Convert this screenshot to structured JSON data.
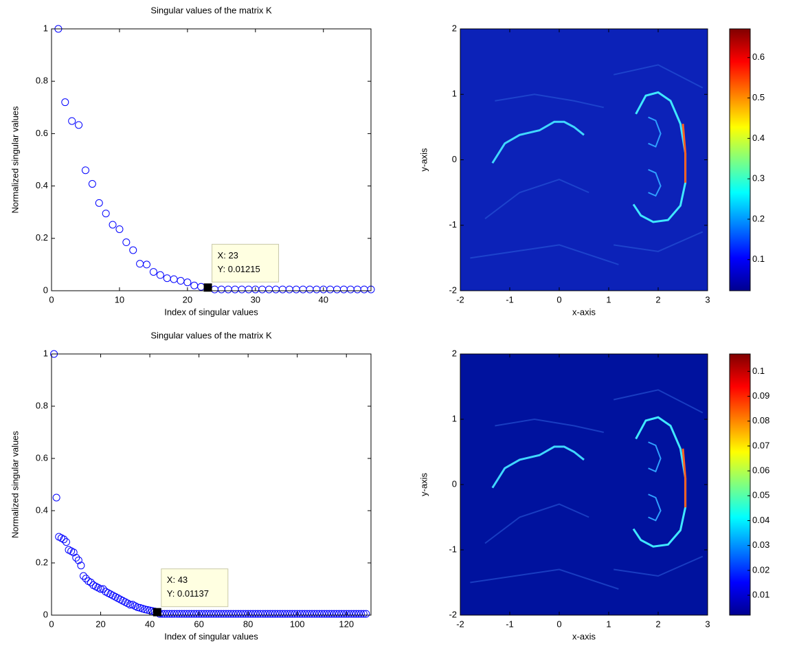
{
  "chart_data": [
    {
      "type": "scatter",
      "title": "Singular values of the matrix K",
      "xlabel": "Index of singular values",
      "ylabel": "Normalized singular values",
      "x": [
        1,
        2,
        3,
        4,
        5,
        6,
        7,
        8,
        9,
        10,
        11,
        12,
        13,
        14,
        15,
        16,
        17,
        18,
        19,
        20,
        21,
        22,
        23,
        24,
        25,
        26,
        27,
        28,
        29,
        30,
        31,
        32,
        33,
        34,
        35,
        36,
        37,
        38,
        39,
        40,
        41,
        42,
        43,
        44,
        45,
        46,
        47
      ],
      "values": [
        1,
        0.72,
        0.648,
        0.633,
        0.46,
        0.408,
        0.335,
        0.295,
        0.252,
        0.235,
        0.185,
        0.155,
        0.103,
        0.1,
        0.072,
        0.06,
        0.048,
        0.044,
        0.038,
        0.032,
        0.02,
        0.015,
        0.01215,
        0.005,
        0.005,
        0.005,
        0.005,
        0.005,
        0.005,
        0.005,
        0.005,
        0.005,
        0.005,
        0.005,
        0.005,
        0.005,
        0.005,
        0.005,
        0.005,
        0.005,
        0.005,
        0.005,
        0.005,
        0.005,
        0.005,
        0.005,
        0.005
      ],
      "color": "#0000ff",
      "xlim": [
        0,
        47
      ],
      "ylim": [
        0,
        1
      ],
      "xticks": [
        0,
        10,
        20,
        30,
        40
      ],
      "yticks": [
        0,
        0.2,
        0.4,
        0.6,
        0.8,
        1
      ],
      "annotations": [
        {
          "x_label": "X: 23",
          "y_label": "Y: 0.01215",
          "x": 23,
          "y": 0.01215
        }
      ]
    },
    {
      "type": "heatmap",
      "xlabel": "x-axis",
      "ylabel": "y-axis",
      "xlim": [
        -2,
        3
      ],
      "ylim": [
        -2,
        2
      ],
      "xticks": [
        -2,
        -1,
        0,
        1,
        2,
        3
      ],
      "yticks": [
        -2,
        -1,
        0,
        1,
        2
      ],
      "colormap": "jet",
      "clim": [
        0.023,
        0.671
      ],
      "cticks": [
        0.1,
        0.2,
        0.3,
        0.4,
        0.5,
        0.6
      ]
    },
    {
      "type": "scatter",
      "title": "Singular values of the matrix K",
      "xlabel": "Index of singular values",
      "ylabel": "Normalized singular values",
      "x": [
        1,
        2,
        3,
        4,
        5,
        6,
        7,
        8,
        9,
        10,
        11,
        12,
        13,
        14,
        15,
        16,
        17,
        18,
        19,
        20,
        21,
        22,
        23,
        24,
        25,
        26,
        27,
        28,
        29,
        30,
        31,
        32,
        33,
        34,
        35,
        36,
        37,
        38,
        39,
        40,
        41,
        42,
        43,
        44,
        45,
        46,
        47,
        48,
        49,
        50,
        51,
        52,
        53,
        54,
        55,
        56,
        57,
        58,
        59,
        60,
        61,
        62,
        63,
        64,
        65,
        66,
        67,
        68,
        69,
        70,
        71,
        72,
        73,
        74,
        75,
        76,
        77,
        78,
        79,
        80,
        81,
        82,
        83,
        84,
        85,
        86,
        87,
        88,
        89,
        90,
        91,
        92,
        93,
        94,
        95,
        96,
        97,
        98,
        99,
        100,
        101,
        102,
        103,
        104,
        105,
        106,
        107,
        108,
        109,
        110,
        111,
        112,
        113,
        114,
        115,
        116,
        117,
        118,
        119,
        120,
        121,
        122,
        123,
        124,
        125,
        126,
        127,
        128
      ],
      "values": [
        1,
        0.45,
        0.3,
        0.295,
        0.29,
        0.28,
        0.25,
        0.245,
        0.24,
        0.22,
        0.21,
        0.19,
        0.15,
        0.14,
        0.13,
        0.125,
        0.115,
        0.11,
        0.105,
        0.1,
        0.1,
        0.09,
        0.085,
        0.08,
        0.075,
        0.07,
        0.065,
        0.06,
        0.055,
        0.05,
        0.045,
        0.04,
        0.04,
        0.035,
        0.03,
        0.028,
        0.025,
        0.022,
        0.02,
        0.018,
        0.016,
        0.014,
        0.01137,
        0.005,
        0.005,
        0.005,
        0.005,
        0.005,
        0.005,
        0.005,
        0.005,
        0.005,
        0.005,
        0.005,
        0.005,
        0.005,
        0.005,
        0.005,
        0.005,
        0.005,
        0.005,
        0.005,
        0.005,
        0.005,
        0.005,
        0.005,
        0.005,
        0.005,
        0.005,
        0.005,
        0.005,
        0.005,
        0.005,
        0.005,
        0.005,
        0.005,
        0.005,
        0.005,
        0.005,
        0.005,
        0.005,
        0.005,
        0.005,
        0.005,
        0.005,
        0.005,
        0.005,
        0.005,
        0.005,
        0.005,
        0.005,
        0.005,
        0.005,
        0.005,
        0.005,
        0.005,
        0.005,
        0.005,
        0.005,
        0.005,
        0.005,
        0.005,
        0.005,
        0.005,
        0.005,
        0.005,
        0.005,
        0.005,
        0.005,
        0.005,
        0.005,
        0.005,
        0.005,
        0.005,
        0.005,
        0.005,
        0.005,
        0.005,
        0.005,
        0.005,
        0.005,
        0.005,
        0.005,
        0.005,
        0.005,
        0.005,
        0.005,
        0.005
      ],
      "color": "#0000ff",
      "xlim": [
        0,
        130
      ],
      "ylim": [
        0,
        1
      ],
      "xticks": [
        0,
        20,
        40,
        60,
        80,
        100,
        120
      ],
      "yticks": [
        0,
        0.2,
        0.4,
        0.6,
        0.8,
        1
      ],
      "annotations": [
        {
          "x_label": "X: 43",
          "y_label": "Y: 0.01137",
          "x": 43,
          "y": 0.01137
        }
      ]
    },
    {
      "type": "heatmap",
      "xlabel": "x-axis",
      "ylabel": "y-axis",
      "xlim": [
        -2,
        3
      ],
      "ylim": [
        -2,
        2
      ],
      "xticks": [
        -2,
        -1,
        0,
        1,
        2,
        3
      ],
      "yticks": [
        -2,
        -1,
        0,
        1,
        2
      ],
      "colormap": "jet",
      "clim": [
        0.002,
        0.107
      ],
      "cticks": [
        0.01,
        0.02,
        0.03,
        0.04,
        0.05,
        0.06,
        0.07,
        0.08,
        0.09,
        0.1
      ]
    }
  ]
}
